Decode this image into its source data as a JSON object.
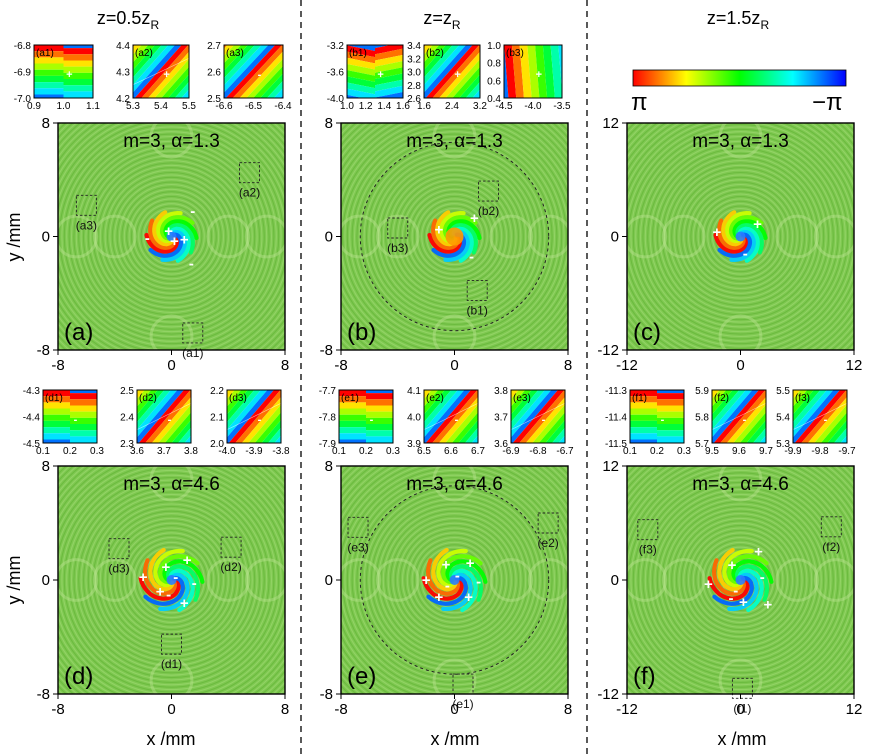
{
  "figure": {
    "columns": [
      {
        "title_prefix": "z=0.5z",
        "title_sub": "R"
      },
      {
        "title_prefix": "z=z",
        "title_sub": "R"
      },
      {
        "title_prefix": "z=1.5z",
        "title_sub": "R"
      }
    ],
    "colorbar": {
      "left_label": "π",
      "right_label": "−π"
    },
    "ylabel": "y /mm",
    "xlabel": "x /mm"
  },
  "chart_data": {
    "type": "heatmap",
    "description_colormap": [
      "#ff0000",
      "#ffff00",
      "#00ff00",
      "#00ffff",
      "#0000ff"
    ],
    "panels": [
      {
        "id": "a",
        "label": "(a)",
        "annotation": "m=3, α=1.3",
        "m": 3,
        "alpha": 1.3,
        "z": "0.5zR",
        "xlim": [
          -8,
          8
        ],
        "ylim": [
          -8,
          8
        ],
        "xticks": [
          "-8",
          "0",
          "8"
        ],
        "yticks": [
          "8",
          "0",
          "-8"
        ],
        "charges": [
          [
            "+",
            -0.2,
            0.4
          ],
          [
            "+",
            0.9,
            -0.2
          ],
          [
            "+",
            0.2,
            -0.3
          ],
          [
            "-",
            -1.7,
            -0.1
          ],
          [
            "-",
            1.5,
            1.8
          ],
          [
            "-",
            1.4,
            -1.9
          ]
        ],
        "boxes": [
          {
            "label": "(a1)",
            "x": 1.5,
            "y": -6.8
          },
          {
            "label": "(a2)",
            "x": 5.5,
            "y": 4.5
          },
          {
            "label": "(a3)",
            "x": -6,
            "y": 2.2
          }
        ]
      },
      {
        "id": "b",
        "label": "(b)",
        "annotation": "m=3, α=1.3",
        "m": 3,
        "alpha": 1.3,
        "z": "zR",
        "xlim": [
          -8,
          8
        ],
        "ylim": [
          -8,
          8
        ],
        "xticks": [
          "-8",
          "0",
          "8"
        ],
        "yticks": [
          "8",
          "0",
          "-8"
        ],
        "charges": [
          [
            "+",
            -1.1,
            0.5
          ],
          [
            "+",
            1.4,
            1.3
          ],
          [
            "-",
            1.2,
            -1.4
          ]
        ],
        "boxes": [
          {
            "label": "(b1)",
            "x": 1.6,
            "y": -3.8
          },
          {
            "label": "(b2)",
            "x": 2.4,
            "y": 3.2
          },
          {
            "label": "(b3)",
            "x": -4,
            "y": 0.6
          }
        ]
      },
      {
        "id": "c",
        "label": "(c)",
        "annotation": "m=3, α=1.3",
        "m": 3,
        "alpha": 1.3,
        "z": "1.5zR",
        "xlim": [
          -12,
          12
        ],
        "ylim": [
          -12,
          12
        ],
        "xticks": [
          "-12",
          "0",
          "12"
        ],
        "yticks": [
          "12",
          "0",
          "-12"
        ],
        "charges": [
          [
            "+",
            -2.5,
            0.5
          ],
          [
            "+",
            1.8,
            1.3
          ],
          [
            "-",
            0.5,
            -1.8
          ]
        ],
        "boxes": []
      },
      {
        "id": "d",
        "label": "(d)",
        "annotation": "m=3, α=4.6",
        "m": 3,
        "alpha": 4.6,
        "z": "0.5zR",
        "xlim": [
          -8,
          8
        ],
        "ylim": [
          -8,
          8
        ],
        "xticks": [
          "-8",
          "0",
          "8"
        ],
        "yticks": [
          "8",
          "0",
          "-8"
        ],
        "charges": [
          [
            "+",
            -2,
            0.2
          ],
          [
            "+",
            -0.4,
            0.9
          ],
          [
            "+",
            1.1,
            1.4
          ],
          [
            "+",
            -0.8,
            -0.8
          ],
          [
            "+",
            0.9,
            -1.6
          ],
          [
            "-",
            0.3,
            0.2
          ],
          [
            "-",
            1.6,
            -0.2
          ],
          [
            "-",
            -0.2,
            -1
          ]
        ],
        "boxes": [
          {
            "label": "(d1)",
            "x": 0,
            "y": -4.5
          },
          {
            "label": "(d2)",
            "x": 4.2,
            "y": 2.3
          },
          {
            "label": "(d3)",
            "x": -3.7,
            "y": 2.2
          }
        ]
      },
      {
        "id": "e",
        "label": "(e)",
        "annotation": "m=3, α=4.6",
        "m": 3,
        "alpha": 4.6,
        "z": "zR",
        "xlim": [
          -8,
          8
        ],
        "ylim": [
          -8,
          8
        ],
        "xticks": [
          "-8",
          "0",
          "8"
        ],
        "yticks": [
          "8",
          "0",
          "-8"
        ],
        "charges": [
          [
            "+",
            -2,
            0
          ],
          [
            "+",
            -0.6,
            1.1
          ],
          [
            "+",
            1.1,
            1.2
          ],
          [
            "+",
            -1.1,
            -1.2
          ],
          [
            "+",
            1,
            -1.2
          ],
          [
            "-",
            0.2,
            0.3
          ],
          [
            "-",
            1.7,
            -0.1
          ],
          [
            "-",
            -0.5,
            -0.4
          ]
        ],
        "boxes": [
          {
            "label": "(e1)",
            "x": 0.6,
            "y": -7.3
          },
          {
            "label": "(e2)",
            "x": 6.6,
            "y": 4
          },
          {
            "label": "(e3)",
            "x": -6.8,
            "y": 3.7
          }
        ]
      },
      {
        "id": "f",
        "label": "(f)",
        "annotation": "m=3, α=4.6",
        "m": 3,
        "alpha": 4.6,
        "z": "1.5zR",
        "xlim": [
          -12,
          12
        ],
        "ylim": [
          -12,
          12
        ],
        "xticks": [
          "-12",
          "0",
          "12"
        ],
        "yticks": [
          "12",
          "0",
          "-12"
        ],
        "charges": [
          [
            "+",
            -3.4,
            -0.4
          ],
          [
            "+",
            -0.9,
            1.6
          ],
          [
            "+",
            1.9,
            3
          ],
          [
            "+",
            0.3,
            -2.3
          ],
          [
            "+",
            2.9,
            -2.6
          ],
          [
            "-",
            -0.5,
            -1.1
          ],
          [
            "-",
            2.3,
            0.3
          ],
          [
            "-",
            -1,
            -1.9
          ]
        ],
        "boxes": [
          {
            "label": "(f1)",
            "x": 0.2,
            "y": -11.4
          },
          {
            "label": "(f2)",
            "x": 9.6,
            "y": 5.6
          },
          {
            "label": "(f3)",
            "x": -9.8,
            "y": 5.3
          }
        ]
      }
    ],
    "insets": [
      {
        "id": "a1",
        "label": "(a1)",
        "row": 0,
        "xticks": [
          "0.9",
          "1.0",
          "1.1"
        ],
        "yticks": [
          "-6.8",
          "-6.9",
          "-7.0"
        ],
        "style": "bands-split",
        "charges": [
          "+"
        ]
      },
      {
        "id": "a2",
        "label": "(a2)",
        "row": 0,
        "xticks": [
          "5.3",
          "5.4",
          "5.5"
        ],
        "yticks": [
          "4.4",
          "4.3",
          "4.2"
        ],
        "style": "diag-fork",
        "charges": [
          "+"
        ]
      },
      {
        "id": "a3",
        "label": "(a3)",
        "row": 0,
        "xticks": [
          "-6.6",
          "-6.5",
          "-6.4"
        ],
        "yticks": [
          "2.7",
          "2.6",
          "2.5"
        ],
        "style": "diag",
        "charges": [
          "-"
        ]
      },
      {
        "id": "b1",
        "label": "(b1)",
        "row": 0,
        "xticks": [
          "1.0",
          "1.2",
          "1.4",
          "1.6"
        ],
        "yticks": [
          "-3.2",
          "-3.6",
          "-4.0"
        ],
        "style": "bands-tilt",
        "charges": [
          "+"
        ]
      },
      {
        "id": "b2",
        "label": "(b2)",
        "row": 0,
        "xticks": [
          "1.6",
          "2.4",
          "3.2"
        ],
        "yticks": [
          "3.4",
          "3.2",
          "3.0",
          "2.8",
          "2.6"
        ],
        "style": "diag",
        "charges": [
          "+"
        ]
      },
      {
        "id": "b3",
        "label": "(b3)",
        "row": 0,
        "xticks": [
          "-4.5",
          "-4.0",
          "-3.5"
        ],
        "yticks": [
          "1.0",
          "0.8",
          "0.6",
          "0.4"
        ],
        "style": "vertical",
        "charges": [
          "+"
        ]
      },
      {
        "id": "d1",
        "label": "(d1)",
        "row": 1,
        "xticks": [
          "0.1",
          "0.2",
          "0.3"
        ],
        "yticks": [
          "-4.3",
          "-4.4",
          "-4.5"
        ],
        "style": "bands-split",
        "charges": [
          "-"
        ]
      },
      {
        "id": "d2",
        "label": "(d2)",
        "row": 1,
        "xticks": [
          "3.6",
          "3.7",
          "3.8"
        ],
        "yticks": [
          "2.5",
          "2.4",
          "2.3"
        ],
        "style": "diag-fork",
        "charges": [
          "-"
        ]
      },
      {
        "id": "d3",
        "label": "(d3)",
        "row": 1,
        "xticks": [
          "-4.0",
          "-3.9",
          "-3.8"
        ],
        "yticks": [
          "2.2",
          "2.1",
          "2.0"
        ],
        "style": "diag-fork",
        "charges": [
          "-"
        ]
      },
      {
        "id": "e1",
        "label": "(e1)",
        "row": 1,
        "xticks": [
          "0.1",
          "0.2",
          "0.3"
        ],
        "yticks": [
          "-7.7",
          "-7.8",
          "-7.9"
        ],
        "style": "bands-split",
        "charges": [
          "-"
        ]
      },
      {
        "id": "e2",
        "label": "(e2)",
        "row": 1,
        "xticks": [
          "6.5",
          "6.6",
          "6.7"
        ],
        "yticks": [
          "4.1",
          "4.0",
          "3.9"
        ],
        "style": "diag-fork",
        "charges": [
          "-"
        ]
      },
      {
        "id": "e3",
        "label": "(e3)",
        "row": 1,
        "xticks": [
          "-6.9",
          "-6.8",
          "-6.7"
        ],
        "yticks": [
          "3.8",
          "3.7",
          "3.6"
        ],
        "style": "diag-fork",
        "charges": [
          "-"
        ]
      },
      {
        "id": "f1",
        "label": "(f1)",
        "row": 1,
        "xticks": [
          "0.1",
          "0.2",
          "0.3"
        ],
        "yticks": [
          "-11.3",
          "-11.4",
          "-11.5"
        ],
        "style": "bands-split",
        "charges": [
          "-"
        ]
      },
      {
        "id": "f2",
        "label": "(f2)",
        "row": 1,
        "xticks": [
          "9.5",
          "9.6",
          "9.7"
        ],
        "yticks": [
          "5.9",
          "5.8",
          "5.7"
        ],
        "style": "diag-fork",
        "charges": [
          "-"
        ]
      },
      {
        "id": "f3",
        "label": "(f3)",
        "row": 1,
        "xticks": [
          "-9.9",
          "-9.8",
          "-9.7"
        ],
        "yticks": [
          "5.5",
          "5.4",
          "5.3"
        ],
        "style": "diag-fork",
        "charges": [
          "-"
        ]
      }
    ]
  }
}
